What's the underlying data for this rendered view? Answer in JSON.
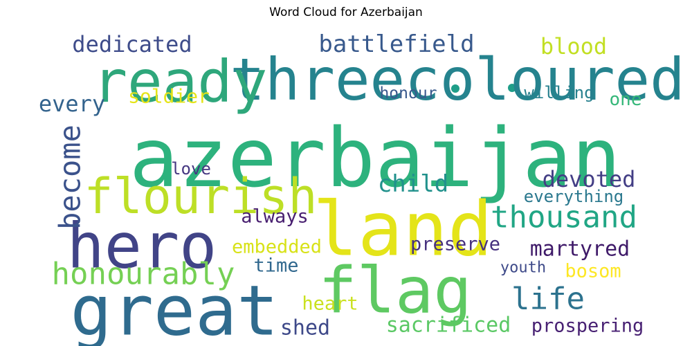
{
  "chart_data": {
    "type": "wordcloud",
    "title": "Word Cloud for Azerbaijan",
    "background": "#ffffff",
    "colormap": "viridis",
    "words": [
      {
        "text": "azerbaijan",
        "color": "#2db27d"
      },
      {
        "text": "land",
        "color": "#e4e419"
      },
      {
        "text": "great",
        "color": "#2f6b8e"
      },
      {
        "text": "threecoloured",
        "color": "#25838e"
      },
      {
        "text": "ready",
        "color": "#2ea77b"
      },
      {
        "text": "flag",
        "color": "#5ec962"
      },
      {
        "text": "hero",
        "color": "#414487"
      },
      {
        "text": "flourish",
        "color": "#bddf26"
      },
      {
        "text": "honourably",
        "color": "#75d054"
      },
      {
        "text": "thousand",
        "color": "#21a685"
      },
      {
        "text": "become",
        "color": "#3b528b"
      },
      {
        "text": "life",
        "color": "#2c728e"
      },
      {
        "text": "battlefield",
        "color": "#38598c"
      },
      {
        "text": "dedicated",
        "color": "#3e4c8a"
      },
      {
        "text": "blood",
        "color": "#c2df23"
      },
      {
        "text": "every",
        "color": "#33638d"
      },
      {
        "text": "soldier",
        "color": "#e5e419"
      },
      {
        "text": "honour",
        "color": "#38588c"
      },
      {
        "text": "willing",
        "color": "#27808e"
      },
      {
        "text": "one",
        "color": "#35b779"
      },
      {
        "text": "love",
        "color": "#453781"
      },
      {
        "text": "child",
        "color": "#21918c"
      },
      {
        "text": "devoted",
        "color": "#433e85"
      },
      {
        "text": "everything",
        "color": "#2a788e"
      },
      {
        "text": "always",
        "color": "#481f70"
      },
      {
        "text": "embedded",
        "color": "#d8e219"
      },
      {
        "text": "preserve",
        "color": "#46307e"
      },
      {
        "text": "martyred",
        "color": "#3f1a69"
      },
      {
        "text": "time",
        "color": "#31688e"
      },
      {
        "text": "youth",
        "color": "#3e4a89"
      },
      {
        "text": "bosom",
        "color": "#fde725"
      },
      {
        "text": "heart",
        "color": "#cae11f"
      },
      {
        "text": "shed",
        "color": "#3e4989"
      },
      {
        "text": "sacrificed",
        "color": "#5ac864"
      },
      {
        "text": "prospering",
        "color": "#482173"
      }
    ]
  }
}
